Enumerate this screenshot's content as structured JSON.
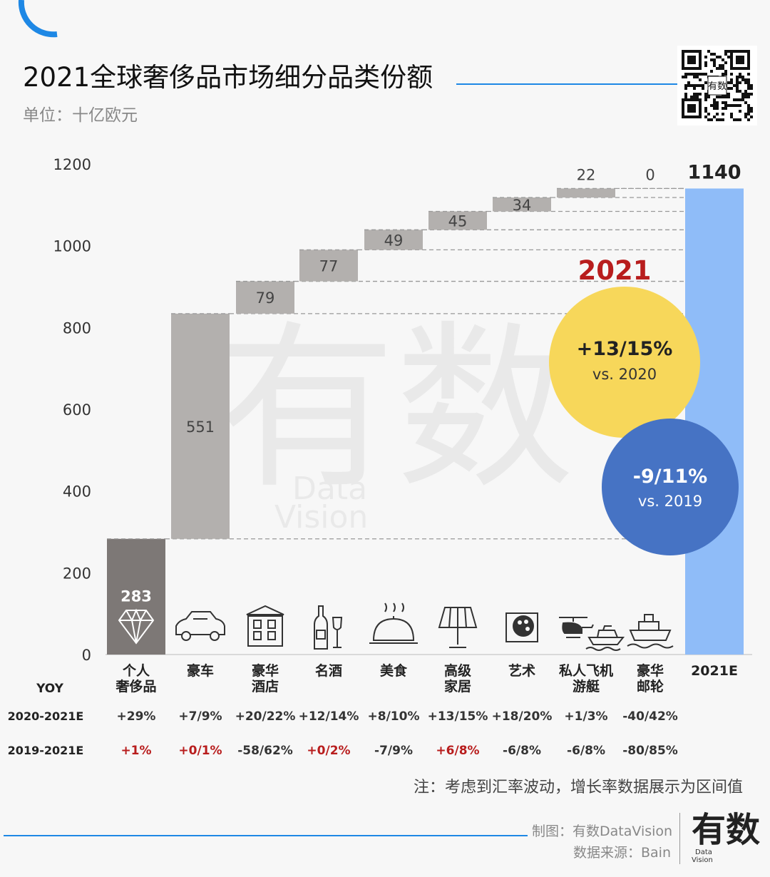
{
  "header": {
    "title": "2021全球奢侈品市场细分品类份额",
    "unit": "单位：十亿欧元"
  },
  "colors": {
    "accent_blue": "#1e88e5",
    "bar_gray": "#b3b0ae",
    "bar_dark": "#7d7876",
    "total_bar": "#8fbcf8",
    "yellow_bubble": "#f7d75a",
    "blue_bubble": "#4673c4",
    "highlight_red": "#b81d1d"
  },
  "chart_data": {
    "type": "bar",
    "subtype": "waterfall",
    "ylim": [
      0,
      1200
    ],
    "yticks": [
      0,
      200,
      400,
      600,
      800,
      1000,
      1200
    ],
    "categories": [
      "个人\n奢侈品",
      "豪车",
      "豪华\n酒店",
      "名酒",
      "美食",
      "高级\n家居",
      "艺术",
      "私人飞机\n游艇",
      "豪华\n邮轮",
      "2021E"
    ],
    "values": [
      283,
      551,
      79,
      77,
      49,
      45,
      34,
      22,
      0,
      1140
    ],
    "icons": [
      "diamond-icon",
      "car-icon",
      "hotel-icon",
      "wine-icon",
      "food-cloche-icon",
      "lamp-icon",
      "art-palette-icon",
      "helicopter-icon",
      "cruise-ship-icon"
    ],
    "yoy_label": "YOY",
    "rows": [
      {
        "label": "2020-2021E",
        "values": [
          "+29%",
          "+7/9%",
          "+20/22%",
          "+12/14%",
          "+8/10%",
          "+13/15%",
          "+18/20%",
          "+1/3%",
          "-40/42%"
        ],
        "highlight": [
          false,
          false,
          false,
          false,
          false,
          false,
          false,
          false,
          false
        ]
      },
      {
        "label": "2019-2021E",
        "values": [
          "+1%",
          "+0/1%",
          "-58/62%",
          "+0/2%",
          "-7/9%",
          "+6/8%",
          "-6/8%",
          "-6/8%",
          "-80/85%"
        ],
        "highlight": [
          true,
          true,
          false,
          true,
          false,
          true,
          false,
          false,
          false
        ]
      }
    ],
    "year_label": "2021",
    "bubbles": [
      {
        "main": "+13/15%",
        "sub": "vs. 2020"
      },
      {
        "main": "-9/11%",
        "sub": "vs. 2019"
      }
    ]
  },
  "footer": {
    "note": "注：考虑到汇率波动，增长率数据展示为区间值",
    "made_by": "制图：有数DataVision",
    "source": "数据来源：Bain",
    "logo_text": "有数",
    "logo_sub1": "Data",
    "logo_sub2": "Vision",
    "watermark_main": "有数",
    "watermark_sub1": "Data",
    "watermark_sub2": "Vision"
  }
}
